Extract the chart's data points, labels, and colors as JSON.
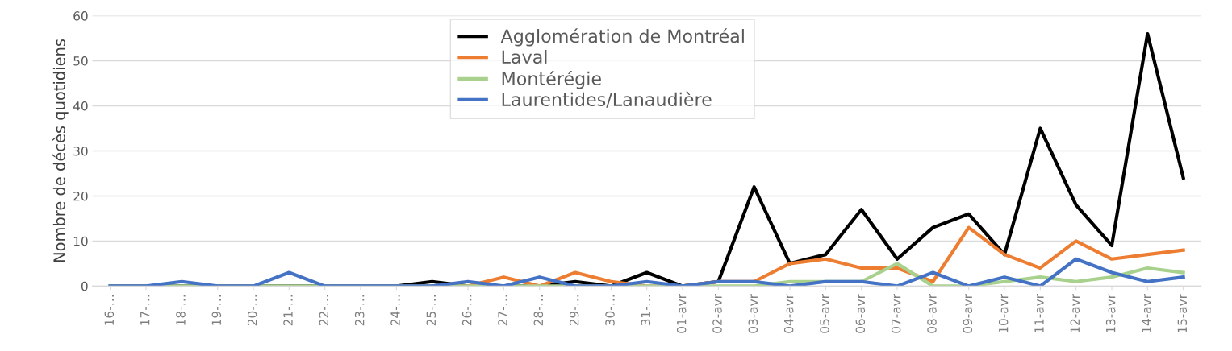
{
  "chart_data": {
    "type": "line",
    "ylabel": "Nombre de décès quotidiens",
    "categories": [
      "16-…",
      "17-…",
      "18-…",
      "19-…",
      "20-…",
      "21-…",
      "22-…",
      "23-…",
      "24-…",
      "25-…",
      "26-…",
      "27-…",
      "28-…",
      "29-…",
      "30-…",
      "31-…",
      "01-avr",
      "02-avr",
      "03-avr",
      "04-avr",
      "05-avr",
      "06-avr",
      "07-avr",
      "08-avr",
      "09-avr",
      "10-avr",
      "11-avr",
      "12-avr",
      "13-avr",
      "14-avr",
      "15-avr"
    ],
    "series": [
      {
        "name": "Agglomération de Montréal",
        "color": "#000000",
        "values": [
          0,
          0,
          0,
          0,
          0,
          0,
          0,
          0,
          0,
          1,
          0,
          0,
          0,
          1,
          0,
          3,
          0,
          1,
          22,
          5,
          7,
          17,
          6,
          13,
          16,
          7,
          35,
          18,
          9,
          56,
          24
        ]
      },
      {
        "name": "Laval",
        "color": "#ed7d31",
        "values": [
          null,
          null,
          null,
          null,
          null,
          null,
          null,
          null,
          null,
          0,
          0,
          2,
          0,
          3,
          1,
          0,
          0,
          1,
          1,
          5,
          6,
          4,
          4,
          1,
          13,
          7,
          4,
          10,
          6,
          7,
          8
        ]
      },
      {
        "name": "Montérégie",
        "color": "#a9d18e",
        "values": [
          0,
          0,
          0,
          0,
          0,
          0,
          0,
          0,
          0,
          0,
          0,
          0,
          0,
          0,
          0,
          0,
          0,
          0,
          0,
          1,
          1,
          1,
          5,
          0,
          0,
          1,
          2,
          1,
          2,
          4,
          3
        ]
      },
      {
        "name": "Laurentides/Lanaudière",
        "color": "#4472c4",
        "values": [
          0,
          0,
          1,
          0,
          0,
          3,
          0,
          0,
          0,
          0,
          1,
          0,
          2,
          0,
          0,
          1,
          0,
          1,
          1,
          0,
          1,
          1,
          0,
          3,
          0,
          2,
          0,
          6,
          3,
          1,
          2
        ]
      }
    ],
    "ylim": [
      0,
      60
    ],
    "yticks": [
      0,
      10,
      20,
      30,
      40,
      50,
      60
    ],
    "grid": "y",
    "legend": "top",
    "marker": "none",
    "line_style": "solid"
  }
}
